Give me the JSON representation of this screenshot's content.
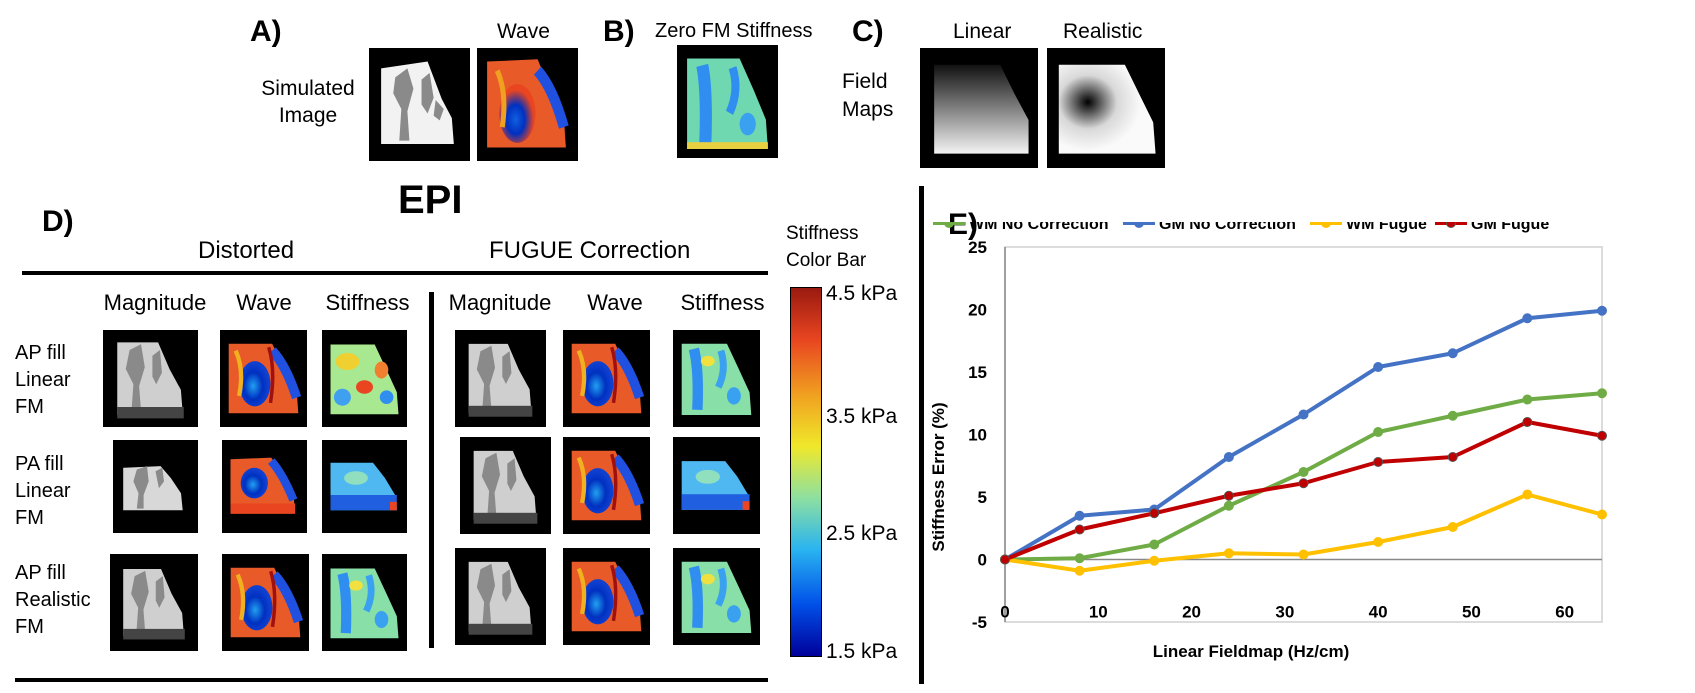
{
  "panels": {
    "a": "A)",
    "b": "B)",
    "c": "C)",
    "d": "D)",
    "e": "E)"
  },
  "top": {
    "simulated_image": "Simulated\nImage",
    "wave": "Wave",
    "zero_fm_stiffness": "Zero FM Stiffness",
    "linear": "Linear",
    "realistic": "Realistic",
    "field_maps": "Field\nMaps"
  },
  "epi": {
    "title": "EPI",
    "distorted": "Distorted",
    "fugue": "FUGUE Correction",
    "columns": [
      "Magnitude",
      "Wave",
      "Stiffness",
      "Magnitude",
      "Wave",
      "Stiffness"
    ],
    "rows": [
      "AP fill\nLinear\nFM",
      "PA fill\nLinear\nFM",
      "AP fill\nRealistic\nFM"
    ]
  },
  "colorbar": {
    "title": "Stiffness\nColor Bar",
    "ticks": [
      "4.5 kPa",
      "3.5 kPa",
      "2.5 kPa",
      "1.5 kPa"
    ],
    "tick_values": [
      4.5,
      3.5,
      2.5,
      1.5
    ],
    "range": [
      1.5,
      4.5
    ],
    "colors": [
      "#00009a",
      "#0050e8",
      "#2ab4f0",
      "#8ee0a0",
      "#f0e82a",
      "#f0a020",
      "#e84520",
      "#9a1a10"
    ]
  },
  "chart_data": {
    "type": "line",
    "title": "",
    "xlabel": "Linear Fieldmap (Hz/cm)",
    "ylabel": "Stiffness Error (%)",
    "xlim": [
      0,
      64
    ],
    "ylim": [
      -5,
      25
    ],
    "x_ticks": [
      0,
      10,
      20,
      30,
      40,
      50,
      60
    ],
    "y_ticks": [
      -5,
      0,
      5,
      10,
      15,
      20,
      25
    ],
    "x": [
      0,
      8,
      16,
      24,
      32,
      40,
      48,
      56,
      64
    ],
    "series": [
      {
        "name": "WM No Correction",
        "color": "#6fac46",
        "values": [
          0,
          0.1,
          1.2,
          4.3,
          7.0,
          10.2,
          11.5,
          12.8,
          13.3
        ]
      },
      {
        "name": "GM No Correction",
        "color": "#4472c4",
        "values": [
          0,
          3.5,
          4.0,
          8.2,
          11.6,
          15.4,
          16.5,
          19.3,
          19.9
        ]
      },
      {
        "name": "WM Fugue",
        "color": "#ffc000",
        "values": [
          0,
          -0.9,
          -0.1,
          0.5,
          0.4,
          1.4,
          2.6,
          5.2,
          3.6
        ]
      },
      {
        "name": "GM Fugue",
        "color": "#c00000",
        "values": [
          0,
          2.4,
          3.7,
          5.1,
          6.1,
          7.8,
          8.2,
          11.0,
          9.9
        ]
      }
    ]
  }
}
